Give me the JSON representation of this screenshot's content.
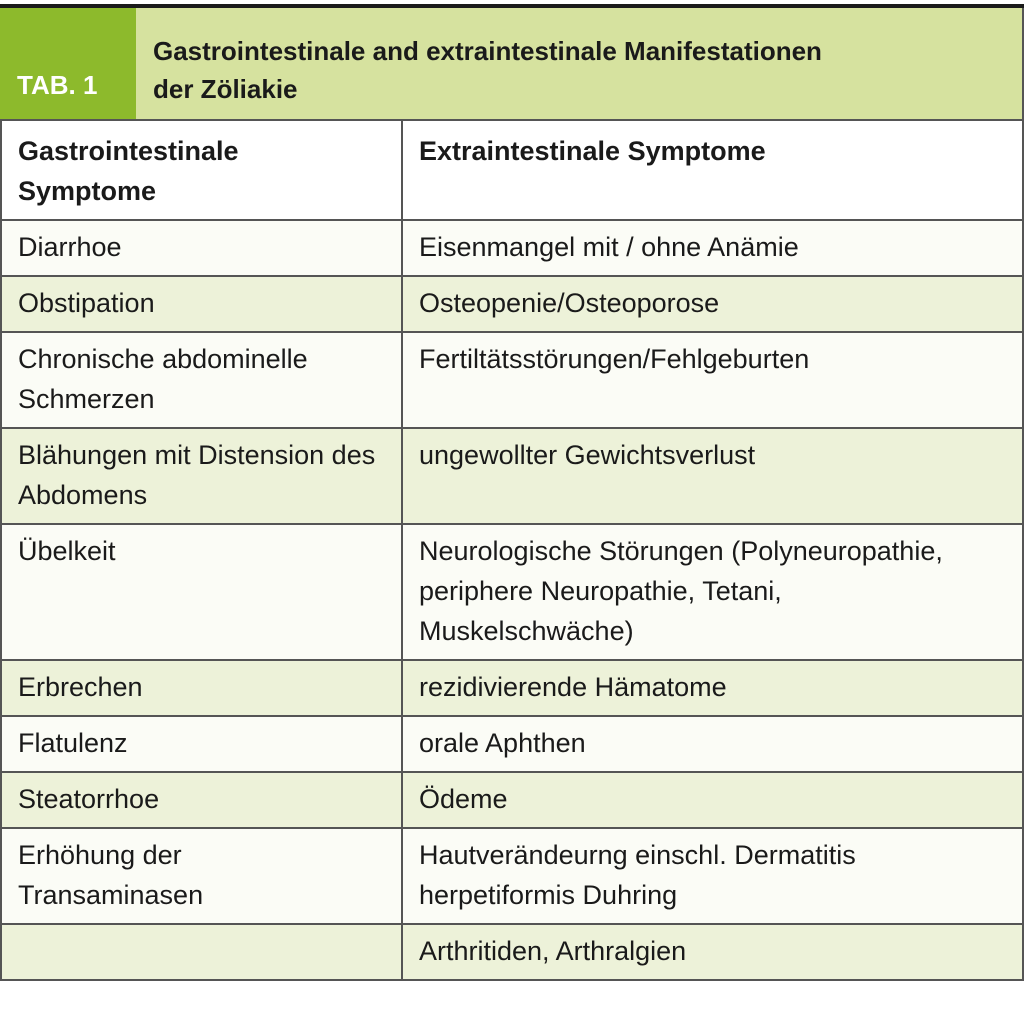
{
  "table": {
    "label": "TAB. 1",
    "title_line1": "Gastrointestinale and extraintestinale Manifestationen",
    "title_line2": "der Zöliakie",
    "headers": [
      "Gastrointestinale Symptome",
      "Extraintestinale Symptome"
    ],
    "rows": [
      [
        "Diarrhoe",
        "Eisenmangel mit / ohne Anämie"
      ],
      [
        "Obstipation",
        "Osteopenie/Osteoporose"
      ],
      [
        "Chronische abdominelle Schmerzen",
        "Fertiltätsstörungen/Fehlgeburten"
      ],
      [
        "Blähungen mit Distension des Abdomens",
        "ungewollter Gewichtsverlust"
      ],
      [
        "Übelkeit",
        "Neurologische Störungen (Polyneuropathie, periphere Neuropathie, Tetani, Muskelschwäche)"
      ],
      [
        "Erbrechen",
        "rezidivierende Hämatome"
      ],
      [
        "Flatulenz",
        "orale Aphthen"
      ],
      [
        "Steatorrhoe",
        "Ödeme"
      ],
      [
        "Erhöhung der Transaminasen",
        "Hautverändeurng einschl. Dermatitis herpetiformis Duhring"
      ],
      [
        "",
        "Arthritiden, Arthralgien"
      ]
    ],
    "colors": {
      "label_bg": "#8dba2c",
      "title_bg": "#d6e29f",
      "row_alt": "#edf2d9"
    }
  }
}
